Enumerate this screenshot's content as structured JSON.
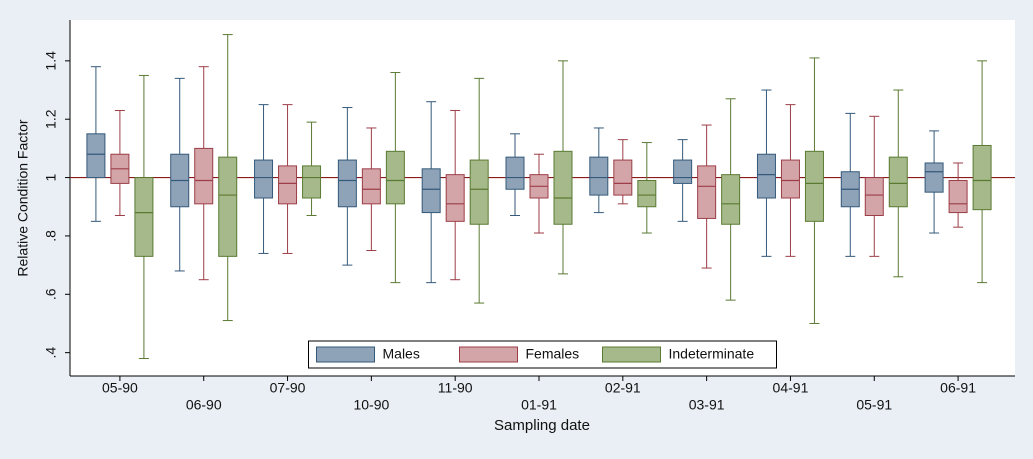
{
  "chart_data": {
    "type": "box",
    "y_label": "Relative Condition Factor",
    "x_label": "Sampling date",
    "categories": [
      "05-90",
      "06-90",
      "07-90",
      "10-90",
      "11-90",
      "01-91",
      "02-91",
      "03-91",
      "04-91",
      "05-91",
      "06-91"
    ],
    "series": [
      {
        "name": "Males",
        "color": "#8fa3b8",
        "stroke": "#34597a",
        "min": [
          0.85,
          0.68,
          0.74,
          0.7,
          0.64,
          0.87,
          0.88,
          0.85,
          0.73,
          0.73,
          0.81
        ],
        "q1": [
          1.0,
          0.9,
          0.93,
          0.9,
          0.88,
          0.96,
          0.94,
          0.98,
          0.93,
          0.9,
          0.95
        ],
        "median": [
          1.08,
          0.99,
          1.0,
          0.99,
          0.96,
          1.0,
          1.0,
          1.0,
          1.01,
          0.96,
          1.02
        ],
        "q3": [
          1.15,
          1.08,
          1.06,
          1.06,
          1.03,
          1.07,
          1.07,
          1.06,
          1.08,
          1.02,
          1.05
        ],
        "max": [
          1.38,
          1.34,
          1.25,
          1.24,
          1.26,
          1.15,
          1.17,
          1.13,
          1.3,
          1.22,
          1.16
        ]
      },
      {
        "name": "Females",
        "color": "#d4a5a8",
        "stroke": "#9c3d47",
        "min": [
          0.87,
          0.65,
          0.74,
          0.75,
          0.65,
          0.81,
          0.91,
          0.69,
          0.73,
          0.73,
          0.83
        ],
        "q1": [
          0.98,
          0.91,
          0.91,
          0.91,
          0.85,
          0.93,
          0.94,
          0.86,
          0.93,
          0.87,
          0.88
        ],
        "median": [
          1.03,
          0.99,
          0.98,
          0.96,
          0.91,
          0.97,
          0.98,
          0.97,
          0.99,
          0.94,
          0.91
        ],
        "q3": [
          1.08,
          1.1,
          1.04,
          1.03,
          1.01,
          1.01,
          1.06,
          1.04,
          1.06,
          1.0,
          0.99
        ],
        "max": [
          1.23,
          1.38,
          1.25,
          1.17,
          1.23,
          1.08,
          1.13,
          1.18,
          1.25,
          1.21,
          1.05
        ]
      },
      {
        "name": "Indeterminate",
        "color": "#a6b98a",
        "stroke": "#5b7a33",
        "min": [
          0.38,
          0.51,
          0.87,
          0.64,
          0.57,
          0.67,
          0.81,
          0.58,
          0.5,
          0.66,
          0.64
        ],
        "q1": [
          0.73,
          0.73,
          0.93,
          0.91,
          0.84,
          0.84,
          0.9,
          0.84,
          0.85,
          0.9,
          0.89
        ],
        "median": [
          0.88,
          0.94,
          1.0,
          0.99,
          0.96,
          0.93,
          0.94,
          0.91,
          0.98,
          0.98,
          0.99
        ],
        "q3": [
          1.0,
          1.07,
          1.04,
          1.09,
          1.06,
          1.09,
          0.99,
          1.01,
          1.09,
          1.07,
          1.11
        ],
        "max": [
          1.35,
          1.49,
          1.19,
          1.36,
          1.34,
          1.4,
          1.12,
          1.27,
          1.41,
          1.3,
          1.4
        ]
      }
    ],
    "reference_line": 1,
    "reference_color": "#8b1a1a",
    "ylim": [
      0.32,
      1.54
    ],
    "yticks": [
      {
        "value": 0.4,
        "label": ".4"
      },
      {
        "value": 0.6,
        "label": ".6"
      },
      {
        "value": 0.8,
        "label": ".8"
      },
      1,
      1.2,
      1.4
    ],
    "legend": "bottom"
  }
}
